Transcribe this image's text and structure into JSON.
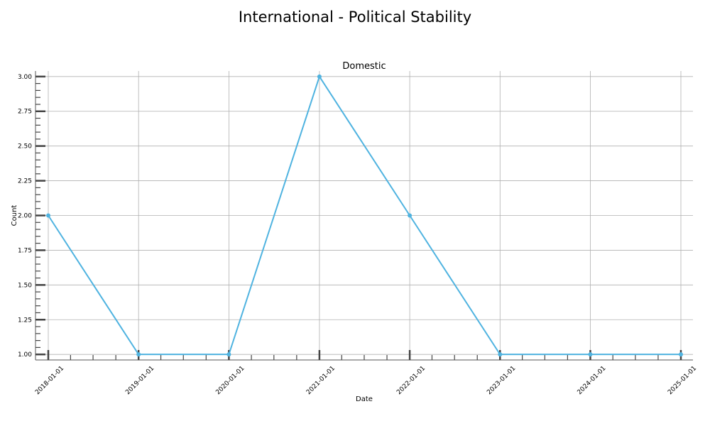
{
  "figure": {
    "title": "International - Political Stability"
  },
  "chart_data": {
    "type": "line",
    "title": "Domestic",
    "xlabel": "Date",
    "ylabel": "Count",
    "x": [
      "2018-01-01",
      "2019-01-01",
      "2020-01-01",
      "2021-01-01",
      "2022-01-01",
      "2023-01-01",
      "2024-01-01",
      "2025-01-01"
    ],
    "series": [
      {
        "values": [
          2,
          1,
          1,
          3,
          2,
          1,
          1,
          1
        ],
        "color": "#4fb3e0"
      }
    ],
    "ylim": [
      0.96,
      3.04
    ],
    "yticks": [
      "1.00",
      "1.25",
      "1.50",
      "1.75",
      "2.00",
      "2.25",
      "2.50",
      "2.75",
      "3.00"
    ],
    "xticks": [
      "2018-01-01",
      "2019-01-01",
      "2020-01-01",
      "2021-01-01",
      "2022-01-01",
      "2023-01-01",
      "2024-01-01",
      "2025-01-01"
    ],
    "grid": true,
    "marker": "circle"
  }
}
